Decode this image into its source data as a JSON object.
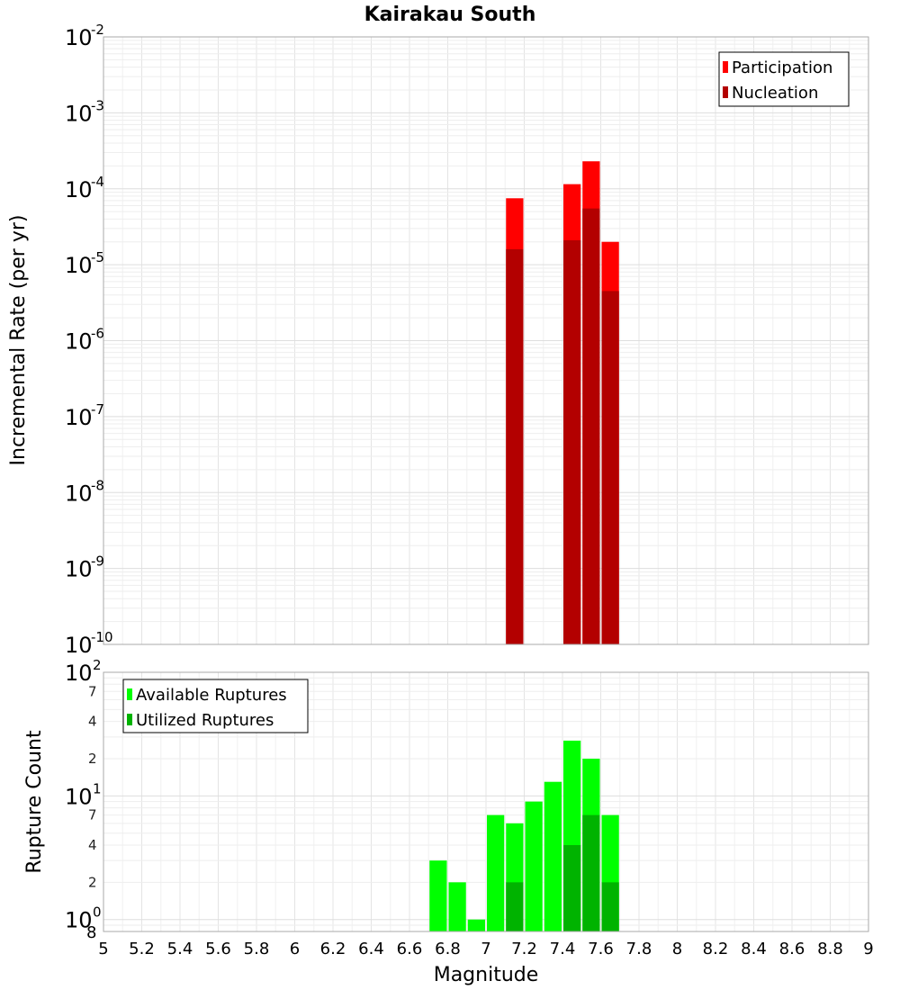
{
  "chart_data": [
    {
      "type": "bar",
      "title": "Kairakau South",
      "xlabel": "",
      "ylabel": "Incremental Rate (per yr)",
      "yscale": "log",
      "ylim": [
        1e-10,
        0.01
      ],
      "xlim": [
        5,
        9
      ],
      "bin_width": 0.1,
      "y_tick_labels": [
        {
          "base": "10",
          "exp": "-2",
          "value": 0.01
        },
        {
          "base": "10",
          "exp": "-3",
          "value": 0.001
        },
        {
          "base": "10",
          "exp": "-4",
          "value": 0.0001
        },
        {
          "base": "10",
          "exp": "-5",
          "value": 1e-05
        },
        {
          "base": "10",
          "exp": "-6",
          "value": 1e-06
        },
        {
          "base": "10",
          "exp": "-7",
          "value": 1e-07
        },
        {
          "base": "10",
          "exp": "-8",
          "value": 1e-08
        },
        {
          "base": "10",
          "exp": "-9",
          "value": 1e-09
        },
        {
          "base": "10",
          "exp": "-10",
          "value": 1e-10
        }
      ],
      "legend": {
        "position": "top-right",
        "entries": [
          "Participation",
          "Nucleation"
        ]
      },
      "series": [
        {
          "name": "Participation",
          "color": "#ff0000",
          "x": [
            7.15,
            7.45,
            7.55,
            7.65
          ],
          "values": [
            7.5e-05,
            0.000115,
            0.00023,
            2e-05
          ]
        },
        {
          "name": "Nucleation",
          "color": "#b30000",
          "x": [
            7.15,
            7.45,
            7.55,
            7.65
          ],
          "values": [
            1.6e-05,
            2.1e-05,
            5.5e-05,
            4.5e-06
          ]
        }
      ]
    },
    {
      "type": "bar",
      "title": "",
      "xlabel": "Magnitude",
      "ylabel": "Rupture Count",
      "yscale": "log",
      "ylim": [
        0.8,
        100
      ],
      "xlim": [
        5,
        9
      ],
      "bin_width": 0.1,
      "x_tick_labels": [
        "5",
        "5.2",
        "5.4",
        "5.6",
        "5.8",
        "6",
        "6.2",
        "6.4",
        "6.6",
        "6.8",
        "7",
        "7.2",
        "7.4",
        "7.6",
        "7.8",
        "8",
        "8.2",
        "8.4",
        "8.6",
        "8.8",
        "9"
      ],
      "y_major_tick_labels": [
        {
          "base": "10",
          "exp": "2",
          "value": 100
        },
        {
          "base": "10",
          "exp": "1",
          "value": 10
        },
        {
          "base": "10",
          "exp": "0",
          "value": 1
        }
      ],
      "y_minor_tick_labels": [
        {
          "label": "7",
          "value": 70
        },
        {
          "label": "4",
          "value": 40
        },
        {
          "label": "2",
          "value": 20
        },
        {
          "label": "7",
          "value": 7
        },
        {
          "label": "4",
          "value": 4
        },
        {
          "label": "2",
          "value": 2
        },
        {
          "label": "8",
          "value": 0.8
        }
      ],
      "legend": {
        "position": "top-left",
        "entries": [
          "Available Ruptures",
          "Utilized Ruptures"
        ]
      },
      "series": [
        {
          "name": "Available Ruptures",
          "color": "#00ff00",
          "x": [
            6.75,
            6.85,
            6.95,
            7.05,
            7.15,
            7.25,
            7.35,
            7.45,
            7.55,
            7.65
          ],
          "values": [
            3,
            2,
            1,
            7,
            6,
            9,
            13,
            28,
            20,
            7
          ]
        },
        {
          "name": "Utilized Ruptures",
          "color": "#00b300",
          "x": [
            7.15,
            7.45,
            7.55,
            7.65
          ],
          "values": [
            2,
            4,
            7,
            2
          ]
        }
      ]
    }
  ]
}
